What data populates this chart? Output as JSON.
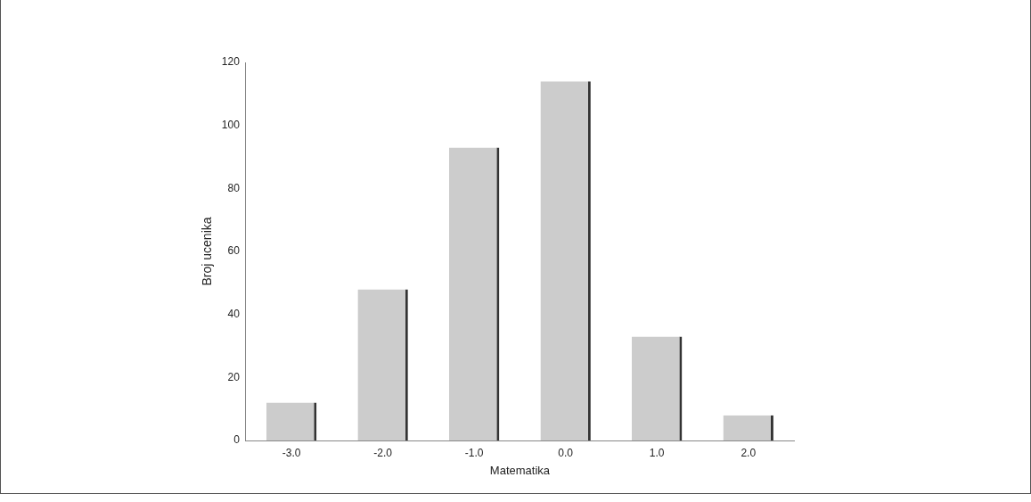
{
  "chart_data": {
    "type": "bar",
    "xlabel": "Matematika",
    "ylabel": "Broj ucenika",
    "categories": [
      "-3.0",
      "-2.0",
      "-1.0",
      "0.0",
      "1.0",
      "2.0"
    ],
    "values": [
      12,
      48,
      93,
      114,
      33,
      8
    ],
    "color": "#cccccc",
    "ylim": [
      0,
      120
    ],
    "yticks": [
      0,
      20,
      40,
      60,
      80,
      100,
      120
    ],
    "grid": false,
    "legend": false
  }
}
